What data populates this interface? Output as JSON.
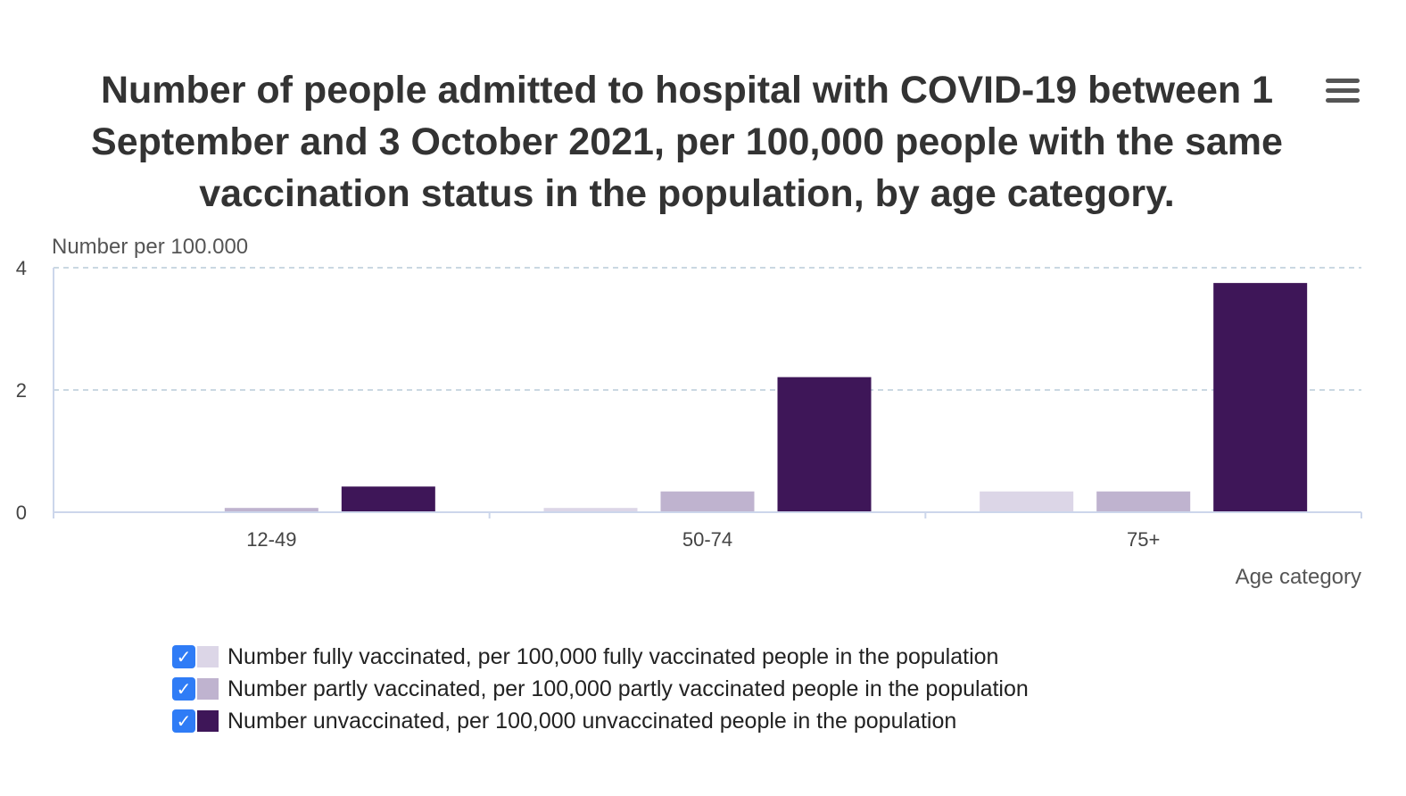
{
  "colors": {
    "fully": "#dcd6e7",
    "partly": "#bfb3cf",
    "unvaccinated": "#3e1658",
    "grid": "#b9cbd8",
    "checkbox": "#2f7cf6"
  },
  "menu_icon": "hamburger-menu-icon",
  "chart_data": {
    "type": "bar",
    "title": "Number of people admitted to hospital with COVID-19 between 1 September and 3 October 2021, per 100,000 people with the same vaccination status in the population, by age category.",
    "ylabel": "Number per 100.000",
    "xlabel": "Age category",
    "ylim": [
      0,
      4
    ],
    "yticks": [
      "0",
      "2",
      "4"
    ],
    "grid": true,
    "legend_position": "bottom-center",
    "categories": [
      "12-49",
      "50-74",
      "75+"
    ],
    "series": [
      {
        "name": "Number fully vaccinated, per 100,000 fully vaccinated people in the population",
        "key": "fully",
        "values": [
          0.0,
          0.07,
          0.34
        ]
      },
      {
        "name": "Number partly vaccinated, per 100,000 partly vaccinated people in the population",
        "key": "partly",
        "values": [
          0.07,
          0.34,
          0.34
        ]
      },
      {
        "name": "Number unvaccinated, per 100,000 unvaccinated people in the population",
        "key": "unvaccinated",
        "values": [
          0.42,
          2.21,
          3.75
        ]
      }
    ]
  }
}
